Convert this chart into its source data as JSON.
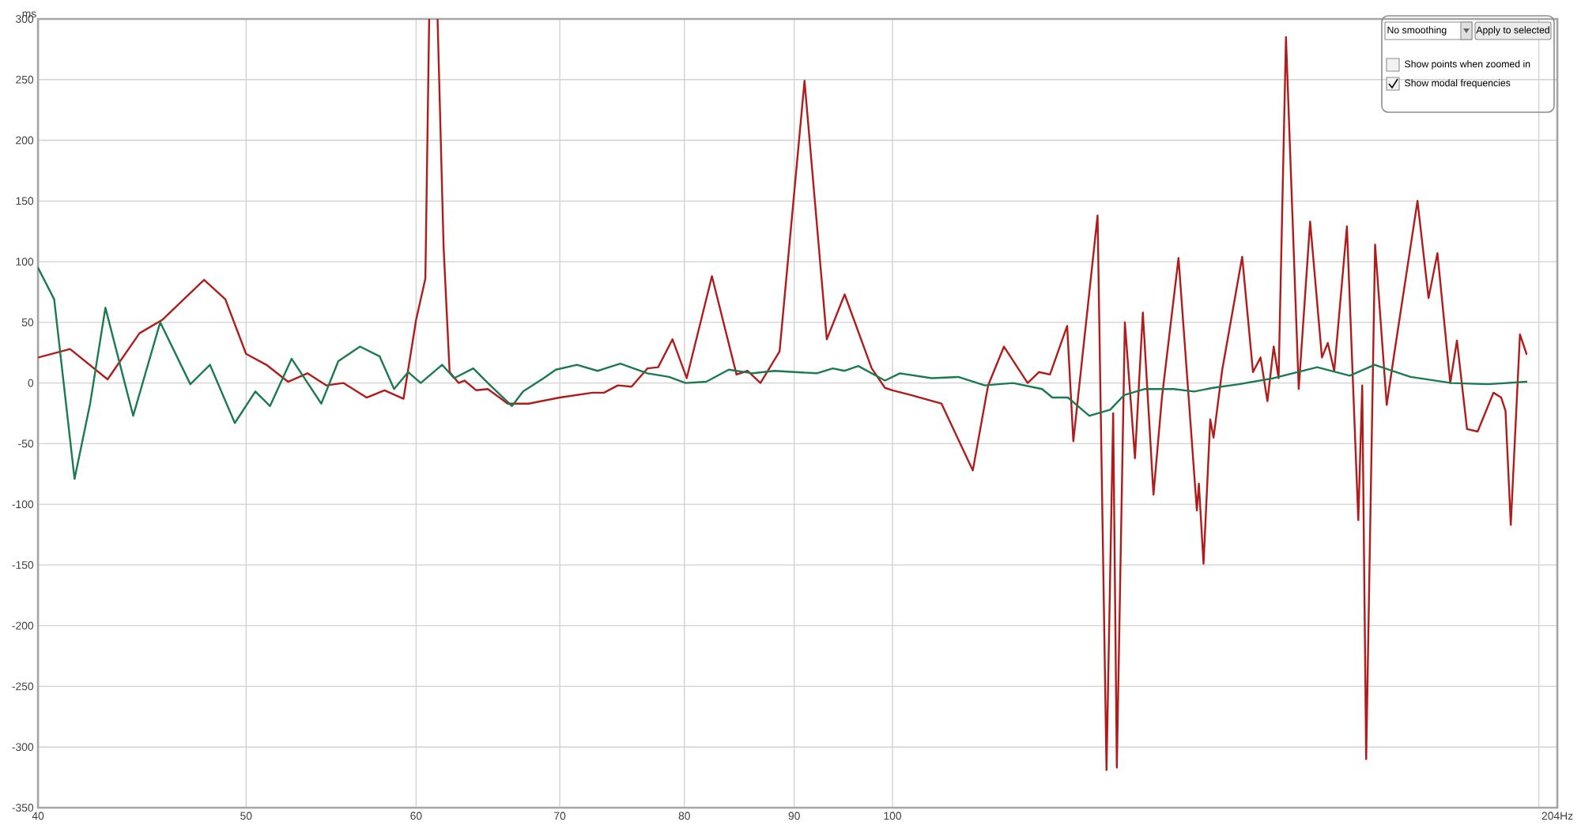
{
  "chart_data": {
    "type": "line",
    "ylabel": "ms",
    "log": "x",
    "grid": true,
    "xlim": [
      40,
      204
    ],
    "xticks": [
      40,
      50,
      60,
      70,
      80,
      90,
      100,
      {
        "value": 200,
        "label": null
      },
      {
        "value": 204,
        "label": "204Hz"
      }
    ],
    "ylim": [
      -350,
      300
    ],
    "yticks": [
      -350,
      -300,
      -250,
      -200,
      -150,
      -100,
      -50,
      0,
      50,
      100,
      150,
      200,
      250,
      300
    ],
    "annotations": [
      "No smoothing",
      "Apply to selected",
      "Show points when zoomed in",
      "Show modal frequencies"
    ],
    "series": [
      {
        "color": "#b01c1c",
        "x": [
          40,
          41.4,
          43.1,
          44.6,
          45.7,
          47.8,
          48.9,
          50,
          51.1,
          52.3,
          53.4,
          54.5,
          55.5,
          56.9,
          58,
          59.2,
          60,
          60.6,
          60.85,
          61.1,
          61.4,
          61.8,
          62.2,
          62.8,
          63.2,
          64.0,
          64.8,
          66.2,
          67.7,
          70,
          72.5,
          73.4,
          74.5,
          75.6,
          76.9,
          77.8,
          79,
          80.2,
          82.4,
          84.6,
          85.6,
          86.8,
          88.6,
          91,
          93.2,
          95,
          97.8,
          99.2,
          100,
          102,
          105.4,
          109,
          110.8,
          112.7,
          115.6,
          117,
          118.4,
          120.6,
          121.4,
          124.6,
          125.8,
          126.7,
          127.2,
          128.3,
          129.7,
          130.8,
          132.3,
          133.5,
          135.9,
          138.6,
          138.9,
          139.6,
          140.6,
          141.1,
          142.4,
          145.5,
          147.2,
          148.4,
          149.5,
          150.5,
          151.3,
          152.5,
          154.6,
          156.5,
          158.5,
          159.5,
          160.6,
          162.8,
          164.8,
          165.5,
          166.2,
          167.8,
          169.9,
          171.3,
          175.6,
          177.7,
          179.4,
          181.9,
          183.2,
          185.2,
          187.3,
          190.5,
          192.1,
          193,
          194.1,
          196,
          197.4
        ],
        "values": [
          21,
          28,
          3,
          41,
          52,
          85,
          69,
          24,
          15,
          1,
          8,
          -2,
          0,
          -12,
          -6,
          -13,
          52,
          86,
          300,
          null,
          300,
          112,
          9,
          0,
          2,
          -6,
          -5,
          -17,
          -17,
          -12,
          -8,
          -8,
          -2,
          -3,
          12,
          13,
          36,
          4,
          88,
          7,
          10,
          0,
          26,
          249,
          36,
          73,
          12,
          -4,
          -6,
          -10,
          -17,
          -72,
          -2,
          30,
          0,
          9,
          7,
          47,
          -48,
          138,
          -319,
          -25,
          -317,
          50,
          -62,
          58,
          -92,
          -12,
          103,
          -105,
          -83,
          -149,
          -30,
          -45,
          10,
          104,
          9,
          21,
          -15,
          30,
          4,
          285,
          -5,
          133,
          21,
          33,
          10,
          129,
          -113,
          -2,
          -310,
          114,
          -18,
          25,
          150,
          70,
          107,
          0,
          35,
          -38,
          -40,
          -8,
          -12,
          -23,
          -117,
          40,
          24
        ]
      },
      {
        "color": "#1a7a50",
        "x": [
          40,
          40.7,
          41.6,
          42.3,
          43,
          44.3,
          45.6,
          47.1,
          48.1,
          49.4,
          50.5,
          51.3,
          52.5,
          54.2,
          55.2,
          56.5,
          57.7,
          58.6,
          59.5,
          60.3,
          61.7,
          62.5,
          63.8,
          64.8,
          66.5,
          67.3,
          68.8,
          69.7,
          71.3,
          72.9,
          74.7,
          76.9,
          78.7,
          80.1,
          81.9,
          83.9,
          86.1,
          88.1,
          92.2,
          93.8,
          95,
          96.4,
          99.2,
          100.8,
          104.3,
          107.3,
          110.4,
          113.8,
          117.4,
          118.7,
          119.5,
          120.7,
          123.5,
          126.3,
          128.2,
          131,
          135.2,
          138.2,
          141,
          145,
          150.5,
          157.7,
          163.3,
          167.7,
          174.3,
          182.1,
          189.4,
          197.4
        ],
        "values": [
          95,
          69,
          -79,
          -17,
          62,
          -27,
          50,
          -1,
          15,
          -33,
          -7,
          -19,
          20,
          -17,
          18,
          30,
          22,
          -5,
          9,
          0,
          15,
          4,
          12,
          0,
          -19,
          -7,
          4,
          11,
          15,
          10,
          16,
          8,
          5,
          0,
          1,
          11,
          8,
          10,
          8,
          12,
          10,
          14,
          2,
          8,
          4,
          5,
          -2,
          0,
          -5,
          -12,
          -12,
          -12,
          -27,
          -22,
          -10,
          -5,
          -5,
          -7,
          -4,
          -1,
          4,
          13,
          6,
          15,
          5,
          0,
          -1,
          1
        ]
      }
    ]
  }
}
